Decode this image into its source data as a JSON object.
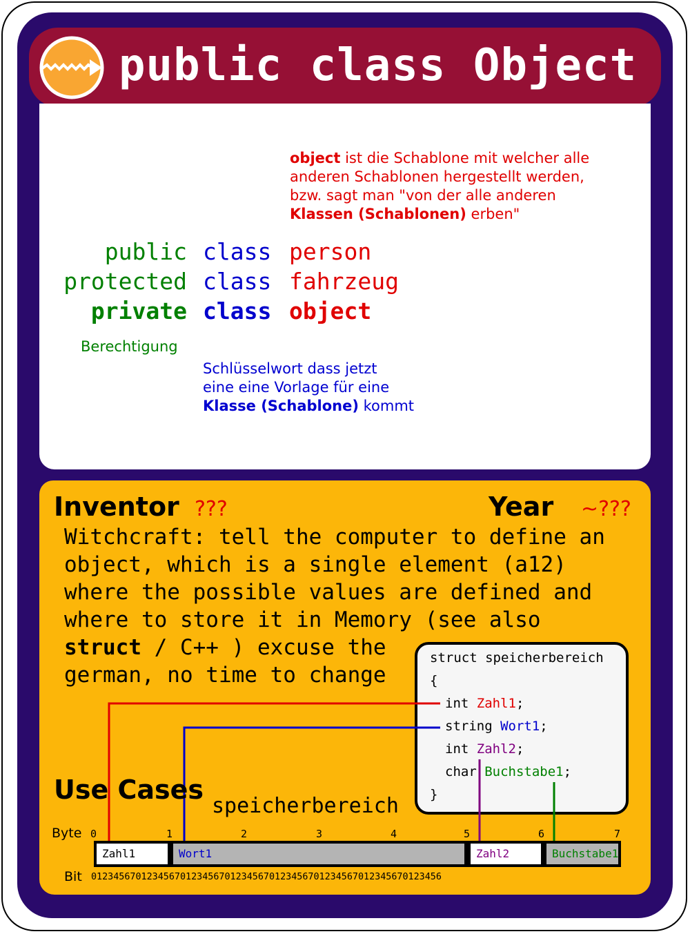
{
  "title": "public class Object",
  "description": {
    "line1_bold": "object",
    "line1_rest": " ist die Schablone mit welcher alle",
    "line2": "anderen Schablonen hergestellt werden,",
    "line3": "bzw. sagt man \"von der alle anderen",
    "line4_bold": "Klassen (Schablonen)",
    "line4_rest": " erben\""
  },
  "code_lines": [
    {
      "modifier": "public",
      "keyword": "class",
      "name": "person"
    },
    {
      "modifier": "protected",
      "keyword": "class",
      "name": "fahrzeug"
    },
    {
      "modifier": "private",
      "keyword": "class",
      "name": "object"
    }
  ],
  "permission_label": "Berechtigung",
  "keyword_note": {
    "line1": "Schlüsselwort dass jetzt",
    "line2": "eine eine Vorlage für eine",
    "line3_bold": "Klasse (Schablone)",
    "line3_rest": " kommt"
  },
  "inventor": {
    "label": "Inventor",
    "value": "???"
  },
  "year": {
    "label": "Year",
    "value": "~???"
  },
  "body": {
    "line1": "Witchcraft: tell the computer to define an",
    "line2": "object, which is a single element (a12)",
    "line3": "where the possible values are defined and",
    "line4": "where to store it in Memory (see also",
    "line5_bold": "struct",
    "line5_rest": " / C++ ) excuse the",
    "line6": "german, no time to change"
  },
  "use_cases_label": "Use Cases",
  "memory_title": "speicherbereich",
  "struct_code": {
    "header": "struct speicherbereich",
    "open": "{",
    "fields": [
      {
        "type": "int",
        "name": "Zahl1",
        "color": "#e00000"
      },
      {
        "type": "string",
        "name": "Wort1",
        "color": "#0000cc"
      },
      {
        "type": "int",
        "name": "Zahl2",
        "color": "#800080"
      },
      {
        "type": "char",
        "name": "Buchstabe1",
        "color": "#008000"
      }
    ],
    "semicolon": ";",
    "close": "}"
  },
  "byte_label": "Byte",
  "bit_label": "Bit",
  "byte_numbers": [
    "0",
    "1",
    "2",
    "3",
    "4",
    "5",
    "6",
    "7"
  ],
  "bit_sequence": "012345670123456701234567012345670123456701234567012345670123456",
  "memory_cells": [
    {
      "label": "Zahl1",
      "color": "#000000",
      "bg": "#ffffff"
    },
    {
      "label": "Wort1",
      "color": "#0000cc",
      "bg": "#b4b4b4"
    },
    {
      "label": "Zahl2",
      "color": "#800080",
      "bg": "#ffffff"
    },
    {
      "label": "Buchstabe1",
      "color": "#008000",
      "bg": "#b4b4b4"
    }
  ],
  "colors": {
    "card": "#2a0a6b",
    "title_bar": "#961035",
    "yellow": "#fcb609",
    "logo": "#f9a632"
  }
}
